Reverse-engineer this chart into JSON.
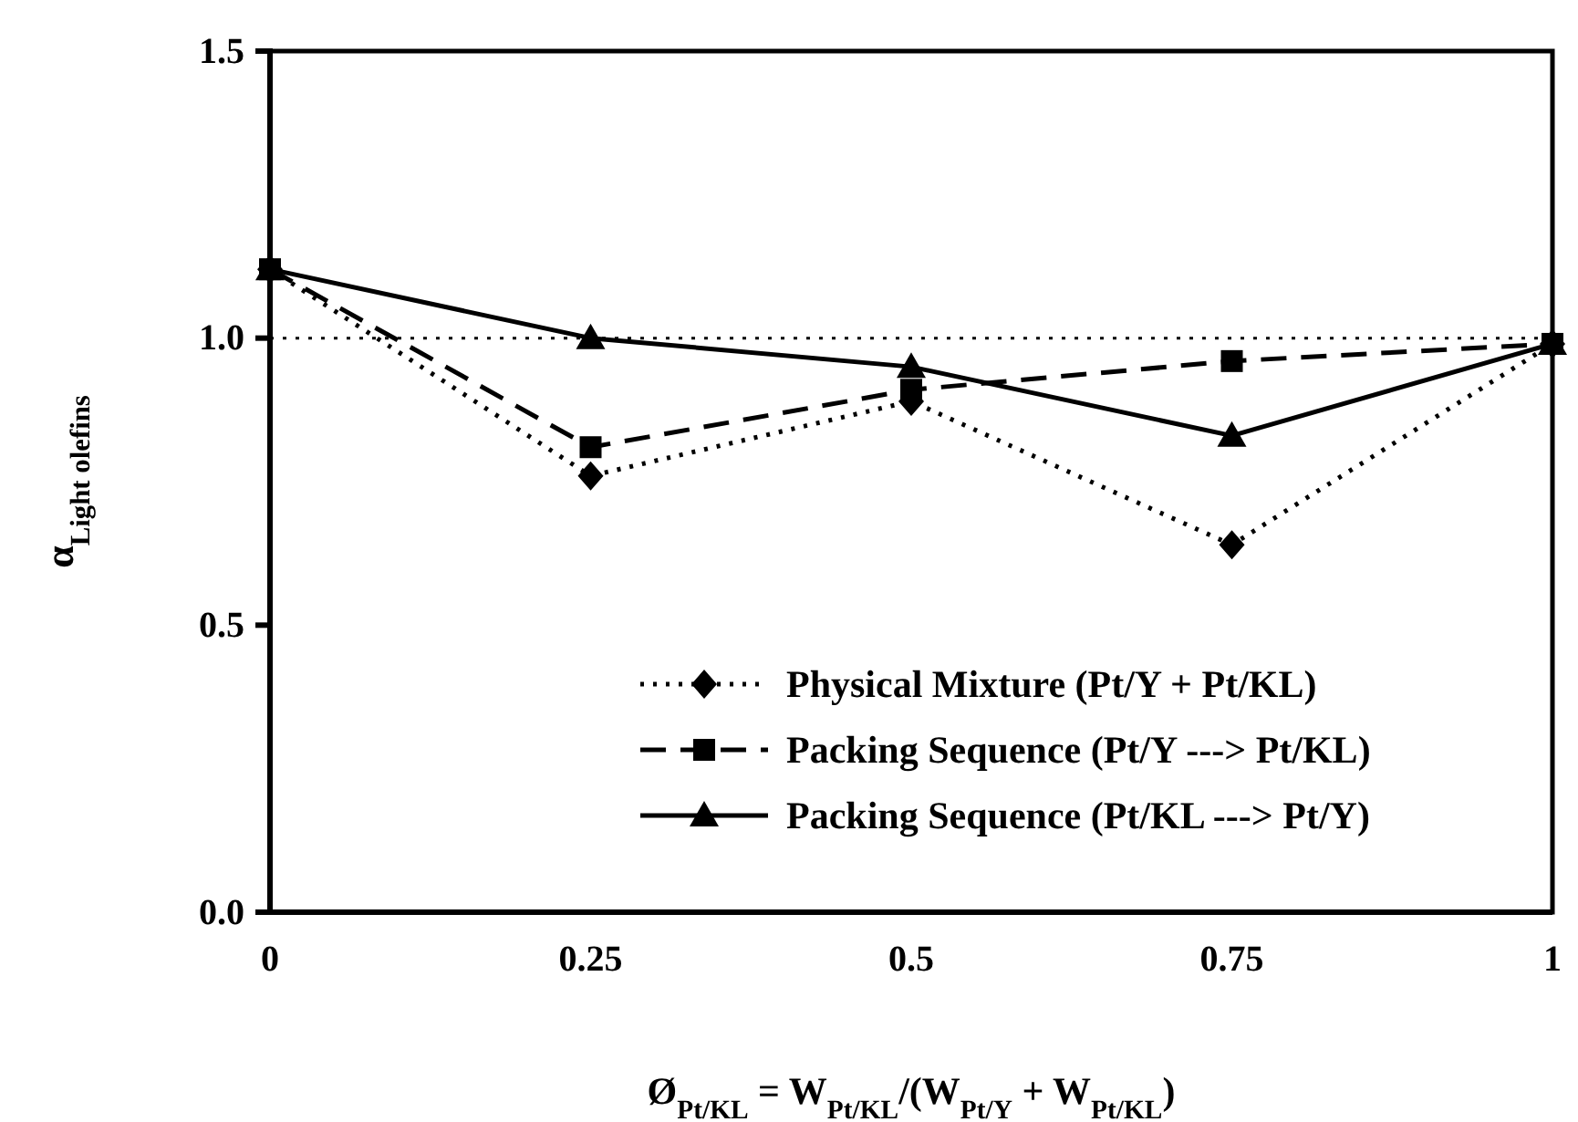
{
  "chart_data": {
    "type": "line",
    "xlabel": "Ø$_{Pt/KL}$ = W$_{Pt/KL}$/(W$_{Pt/Y}$ + W$_{Pt/KL}$)",
    "ylabel": "α$_{Light olefins}$",
    "x": [
      0,
      0.25,
      0.5,
      0.75,
      1
    ],
    "xlim": [
      0,
      1
    ],
    "xticks": [
      0,
      0.25,
      0.5,
      0.75,
      1
    ],
    "ylim": [
      0,
      1.5
    ],
    "yticks": [
      {
        "value": 0,
        "label": "0.0"
      },
      {
        "value": 0.5,
        "label": "0.5"
      },
      {
        "value": 1,
        "label": "1.0"
      },
      {
        "value": 1.5,
        "label": "1.5"
      }
    ],
    "grid": false,
    "legend": "bottom right",
    "ref_lines": [
      {
        "axis": "y",
        "value": 1,
        "line_style": "dotted",
        "color": "#000000"
      }
    ],
    "series": [
      {
        "name": "Physical Mixture (Pt/Y + Pt/KL)",
        "color": "#000000",
        "marker": "diamond",
        "line_style": "dotted",
        "values": [
          1.12,
          0.76,
          0.89,
          0.64,
          0.99
        ]
      },
      {
        "name": "Packing Sequence (Pt/Y ---> Pt/KL)",
        "color": "#000000",
        "marker": "square",
        "line_style": "dashed",
        "values": [
          1.12,
          0.81,
          0.91,
          0.96,
          0.99
        ]
      },
      {
        "name": "Packing Sequence (Pt/KL ---> Pt/Y)",
        "color": "#000000",
        "marker": "triangle",
        "line_style": "solid",
        "values": [
          1.12,
          1.0,
          0.95,
          0.83,
          0.99
        ]
      }
    ]
  }
}
